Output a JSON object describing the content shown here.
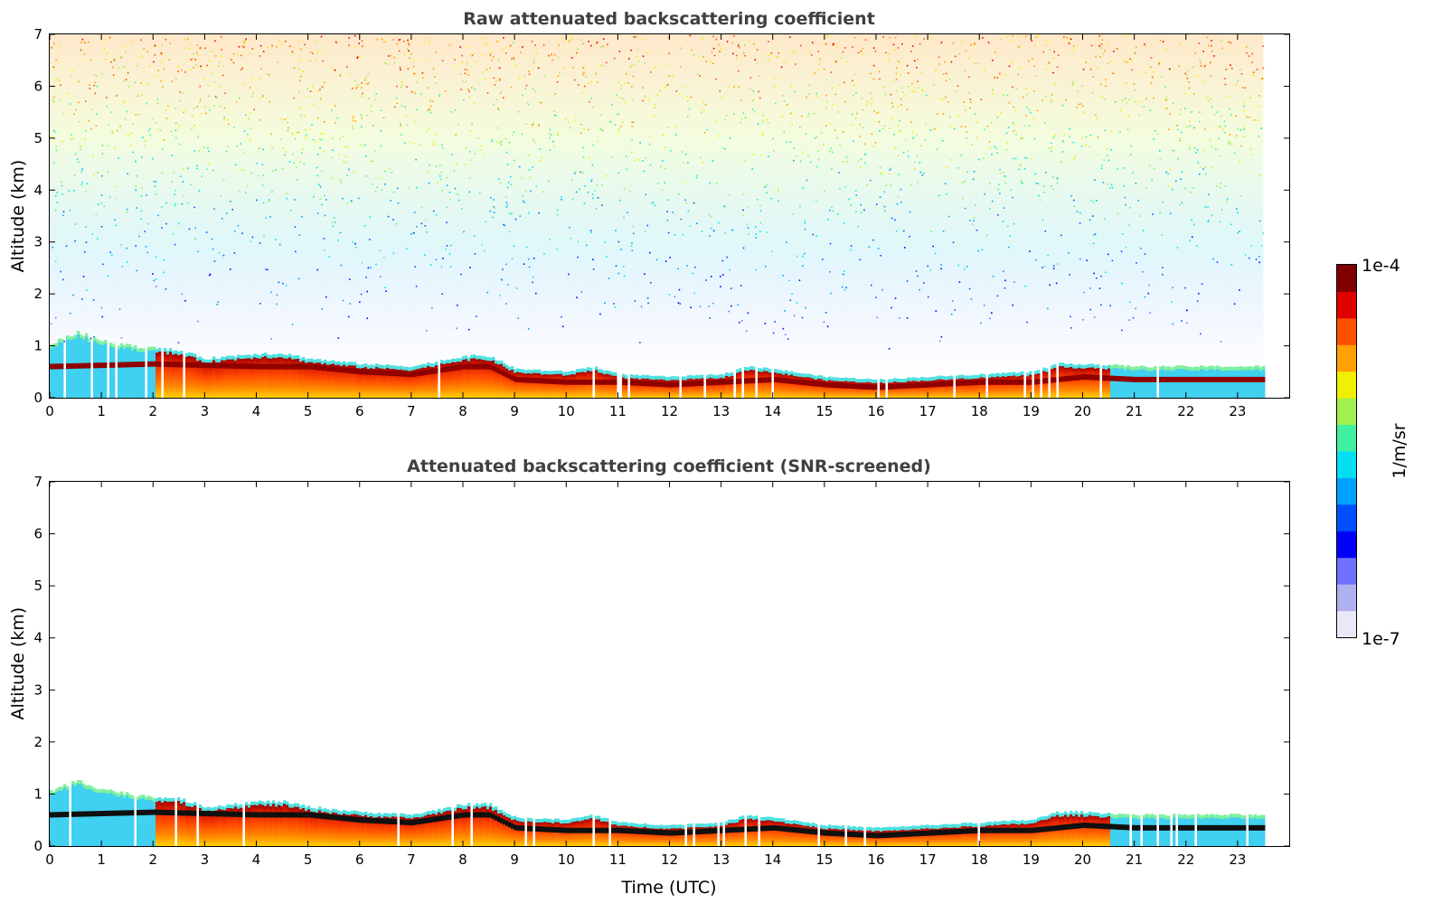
{
  "chart_data": [
    {
      "type": "heatmap",
      "title": "Raw attenuated backscattering coefficient",
      "xlabel": "",
      "ylabel": "Altitude (km)",
      "xlim": [
        0,
        24
      ],
      "ylim": [
        0,
        7
      ],
      "xticks": [
        "0",
        "1",
        "2",
        "3",
        "4",
        "5",
        "6",
        "7",
        "8",
        "9",
        "10",
        "11",
        "12",
        "13",
        "14",
        "15",
        "16",
        "17",
        "18",
        "19",
        "20",
        "21",
        "22",
        "23"
      ],
      "yticks": [
        "0",
        "1",
        "2",
        "3",
        "4",
        "5",
        "6",
        "7"
      ],
      "data_end_time": 23.5,
      "boundary_layer_top_km": {
        "time": [
          0,
          0.5,
          1,
          1.5,
          2,
          2.5,
          3,
          3.5,
          4,
          4.5,
          5,
          6,
          7,
          8,
          8.5,
          9,
          10,
          10.5,
          11,
          12,
          13,
          13.5,
          14,
          15,
          16,
          17,
          18,
          19,
          19.5,
          20,
          21,
          22,
          23,
          23.5
        ],
        "altitude": [
          1.0,
          1.2,
          1.05,
          0.95,
          0.9,
          0.85,
          0.7,
          0.75,
          0.8,
          0.8,
          0.7,
          0.6,
          0.55,
          0.75,
          0.75,
          0.5,
          0.45,
          0.55,
          0.4,
          0.35,
          0.4,
          0.55,
          0.5,
          0.35,
          0.3,
          0.35,
          0.4,
          0.45,
          0.6,
          0.6,
          0.55,
          0.55,
          0.55,
          0.55
        ]
      },
      "signal_layer_km": {
        "time": [
          0,
          2,
          4,
          5,
          6,
          7,
          8,
          8.5,
          9,
          10,
          11,
          12,
          13,
          14,
          15,
          16,
          17,
          18,
          19,
          20,
          21,
          22,
          23,
          23.5
        ],
        "altitude": [
          0.6,
          0.65,
          0.6,
          0.6,
          0.5,
          0.45,
          0.6,
          0.6,
          0.35,
          0.3,
          0.3,
          0.25,
          0.3,
          0.35,
          0.25,
          0.2,
          0.25,
          0.3,
          0.3,
          0.4,
          0.35,
          0.35,
          0.35,
          0.35
        ]
      }
    },
    {
      "type": "heatmap",
      "title": "Attenuated backscattering coefficient (SNR-screened)",
      "xlabel": "Time (UTC)",
      "ylabel": "Altitude (km)",
      "xlim": [
        0,
        24
      ],
      "ylim": [
        0,
        7
      ],
      "xticks": [
        "0",
        "1",
        "2",
        "3",
        "4",
        "5",
        "6",
        "7",
        "8",
        "9",
        "10",
        "11",
        "12",
        "13",
        "14",
        "15",
        "16",
        "17",
        "18",
        "19",
        "20",
        "21",
        "22",
        "23"
      ],
      "yticks": [
        "0",
        "1",
        "2",
        "3",
        "4",
        "5",
        "6",
        "7"
      ],
      "data_end_time": 23.5
    }
  ],
  "colorbar": {
    "label": "1/m/sr",
    "max_label": "1e-4",
    "min_label": "1e-7",
    "colors": [
      "#e8e8f8",
      "#b0b0f0",
      "#7070ff",
      "#0000ff",
      "#0050ff",
      "#00a0ff",
      "#00e0f0",
      "#40f0a0",
      "#a0f050",
      "#f0f000",
      "#ffa000",
      "#ff5000",
      "#e00000",
      "#800000"
    ]
  }
}
